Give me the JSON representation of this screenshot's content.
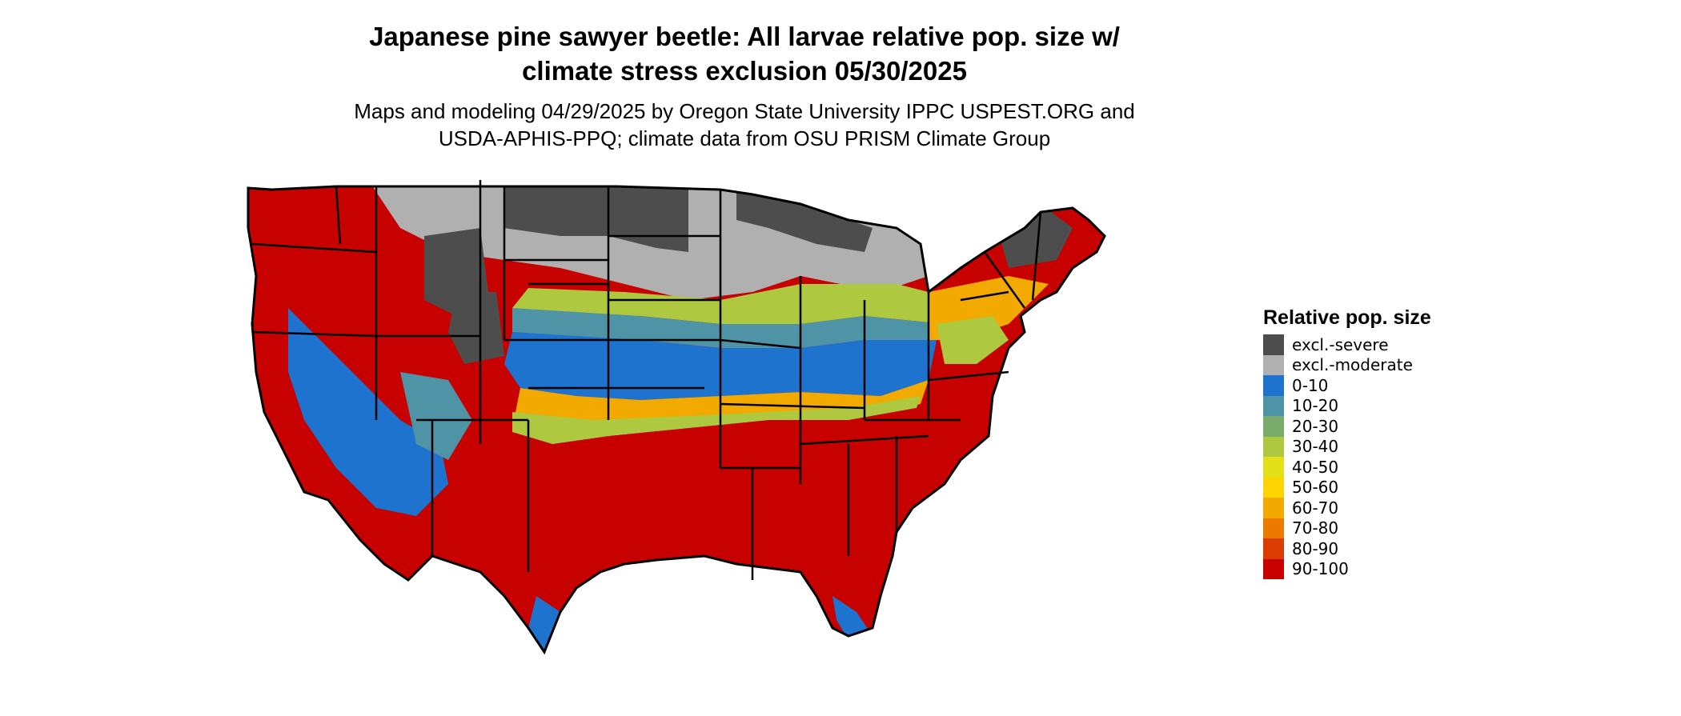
{
  "title_line1": "Japanese pine sawyer beetle: All larvae relative pop. size w/",
  "title_line2": "climate stress exclusion 05/30/2025",
  "subtitle_line1": "Maps and modeling 04/29/2025 by Oregon State University IPPC USPEST.ORG and",
  "subtitle_line2": "USDA-APHIS-PPQ; climate data from OSU PRISM Climate Group",
  "legend": {
    "title": "Relative pop. size",
    "items": [
      {
        "label": "excl.-severe",
        "color": "#4d4d4d"
      },
      {
        "label": "excl.-moderate",
        "color": "#b0b0b0"
      },
      {
        "label": "0-10",
        "color": "#1e73cf"
      },
      {
        "label": "10-20",
        "color": "#4f93a6"
      },
      {
        "label": "20-30",
        "color": "#7aab6c"
      },
      {
        "label": "30-40",
        "color": "#aec93f"
      },
      {
        "label": "40-50",
        "color": "#e3e01a"
      },
      {
        "label": "50-60",
        "color": "#ffd400"
      },
      {
        "label": "60-70",
        "color": "#f2a900"
      },
      {
        "label": "70-80",
        "color": "#ec7a00"
      },
      {
        "label": "80-90",
        "color": "#db3d00"
      },
      {
        "label": "90-100",
        "color": "#c70000"
      }
    ]
  },
  "map_colors": {
    "severe": "#4d4d4d",
    "moderate": "#b0b0b0",
    "low": "#1e73cf",
    "mid_low": "#4f93a6",
    "mid": "#aec93f",
    "mid_high": "#f2a900",
    "high": "#c70000",
    "border": "#000000"
  }
}
